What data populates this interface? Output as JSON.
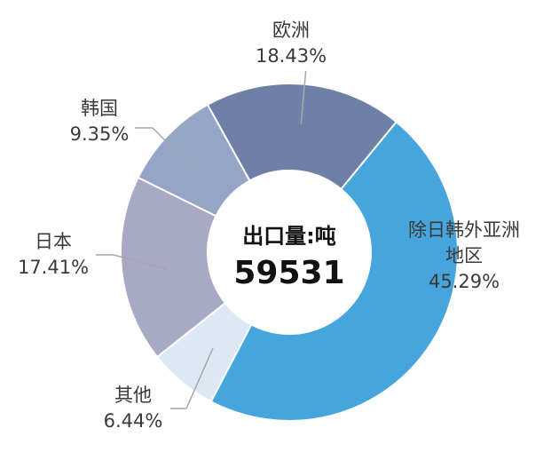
{
  "chart_data": {
    "type": "pie",
    "donut": true,
    "center": {
      "title": "出口量:吨",
      "value": "59531"
    },
    "slices": [
      {
        "name": "欧洲",
        "value": 18.43,
        "pct_label": "18.43%",
        "color": "#6e80a6"
      },
      {
        "name": "除日韩外亚洲地区",
        "name_lines": [
          "除日韩外亚洲",
          "地区"
        ],
        "value": 45.29,
        "pct_label": "45.29%",
        "color": "#45a5dc"
      },
      {
        "name": "其他",
        "value": 6.44,
        "pct_label": "6.44%",
        "color": "#dce9f5"
      },
      {
        "name": "日本",
        "value": 17.41,
        "pct_label": "17.41%",
        "color": "#a8aac5"
      },
      {
        "name": "韩国",
        "value": 9.35,
        "pct_label": "9.35%",
        "color": "#95a5c6"
      }
    ],
    "legend": "none"
  }
}
